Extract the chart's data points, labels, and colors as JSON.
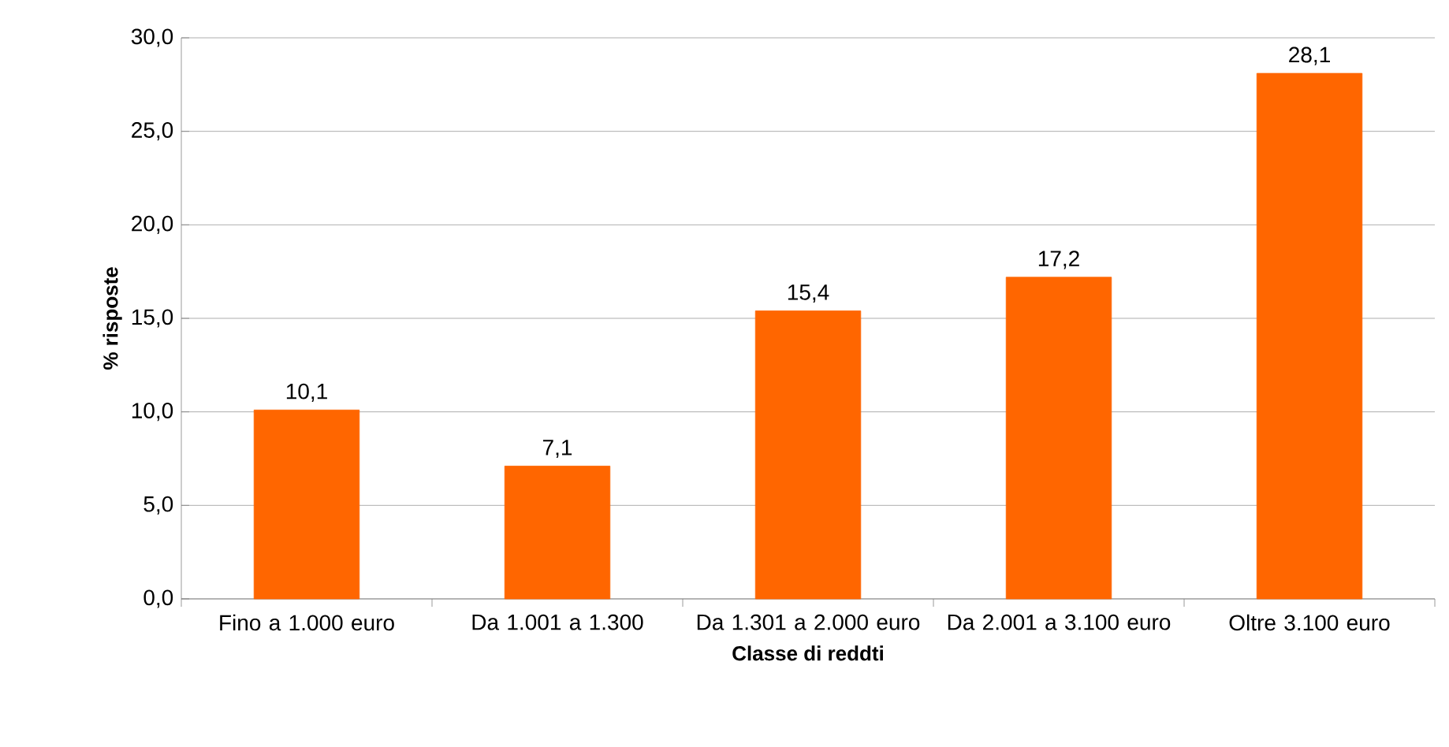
{
  "chart_data": {
    "type": "bar",
    "categories": [
      "Fino a 1.000 euro",
      "Da 1.001 a 1.300",
      "Da 1.301 a 2.000 euro",
      "Da 2.001 a 3.100 euro",
      "Oltre 3.100 euro"
    ],
    "values": [
      10.1,
      7.1,
      15.4,
      17.2,
      28.1
    ],
    "value_labels": [
      "10,1",
      "7,1",
      "15,4",
      "17,2",
      "28,1"
    ],
    "color": "#ff6600",
    "xlabel": "Classe di reddti",
    "ylabel": "% risposte",
    "ylim": [
      0,
      30
    ],
    "yticks": [
      {
        "value": 0,
        "label": "0,0"
      },
      {
        "value": 5,
        "label": "5,0"
      },
      {
        "value": 10,
        "label": "10,0"
      },
      {
        "value": 15,
        "label": "15,0"
      },
      {
        "value": 20,
        "label": "20,0"
      },
      {
        "value": 25,
        "label": "25,0"
      },
      {
        "value": 30,
        "label": "30,0"
      }
    ],
    "grid": "y"
  }
}
